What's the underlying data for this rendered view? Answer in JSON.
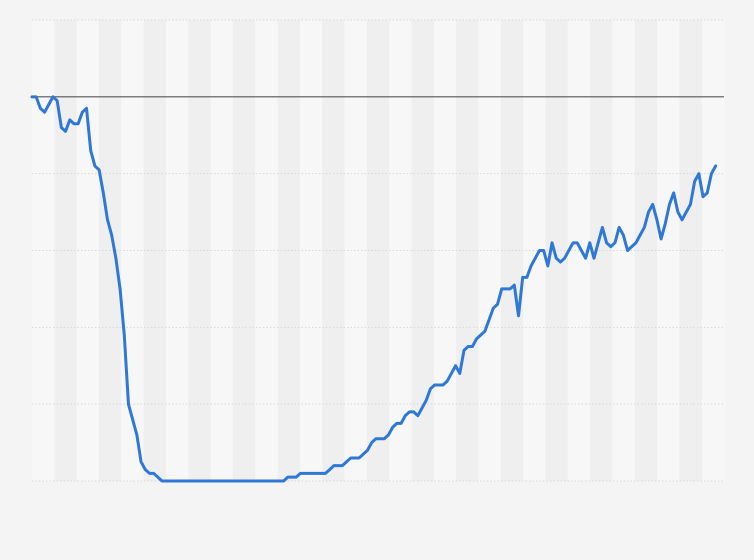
{
  "chart_data": {
    "type": "line",
    "title": "",
    "xlabel": "",
    "ylabel": "",
    "x_range": [
      0,
      165
    ],
    "ylim": [
      0,
      120
    ],
    "grid": true,
    "reference_line": 100,
    "series": [
      {
        "values": [
          100,
          100,
          97,
          96,
          98,
          100,
          99,
          92,
          91,
          94,
          93,
          93,
          96,
          97,
          86,
          82,
          81,
          75,
          68,
          64,
          58,
          50,
          38,
          20,
          16,
          12,
          5,
          3,
          2,
          2,
          1,
          0,
          0,
          0,
          0,
          0,
          0,
          0,
          0,
          0,
          0,
          0,
          0,
          0,
          0,
          0,
          0,
          0,
          0,
          0,
          0,
          0,
          0,
          0,
          0,
          0,
          0,
          0,
          0,
          0,
          0,
          1,
          1,
          1,
          2,
          2,
          2,
          2,
          2,
          2,
          2,
          3,
          4,
          4,
          4,
          5,
          6,
          6,
          6,
          7,
          8,
          10,
          11,
          11,
          11,
          12,
          14,
          15,
          15,
          17,
          18,
          18,
          17,
          19,
          21,
          24,
          25,
          25,
          25,
          26,
          28,
          30,
          28,
          34,
          35,
          35,
          37,
          38,
          39,
          42,
          45,
          46,
          50,
          50,
          50,
          51,
          43,
          53,
          53,
          56,
          58,
          60,
          60,
          56,
          62,
          58,
          57,
          58,
          60,
          62,
          62,
          60,
          58,
          62,
          58,
          62,
          66,
          62,
          61,
          62,
          66,
          64,
          60,
          61,
          62,
          64,
          66,
          70,
          72,
          68,
          63,
          67,
          72,
          75,
          70,
          68,
          70,
          72,
          78,
          80,
          74,
          75,
          80,
          82
        ]
      }
    ],
    "colors": {
      "line": "#2f78d6",
      "reference": "#555555",
      "grid": "#d8d8d8",
      "band_light": "#f7f7f7",
      "band_dark": "#efefef"
    }
  }
}
